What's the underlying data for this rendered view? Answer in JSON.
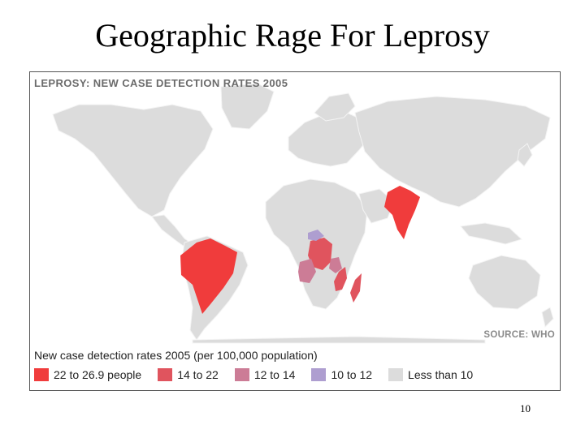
{
  "slide": {
    "title": "Geographic Rage For Leprosy",
    "page_number": "10"
  },
  "map": {
    "heading": "LEPROSY: NEW CASE DETECTION RATES 2005",
    "source": "SOURCE: WHO",
    "legend_title": "New case detection rates 2005 (per 100,000 population)",
    "legend": [
      {
        "label": "22 to 26.9 people",
        "color": "#f03c3c"
      },
      {
        "label": "14 to 22",
        "color": "#e0545e"
      },
      {
        "label": "12 to 14",
        "color": "#cc7c96"
      },
      {
        "label": "10 to 12",
        "color": "#ae9ed0"
      },
      {
        "label": "Less than 10",
        "color": "#dcdcdc"
      }
    ],
    "colors": {
      "background": "#ffffff",
      "land": "#dcdcdc",
      "border_lines": "#f4f4f4"
    }
  }
}
